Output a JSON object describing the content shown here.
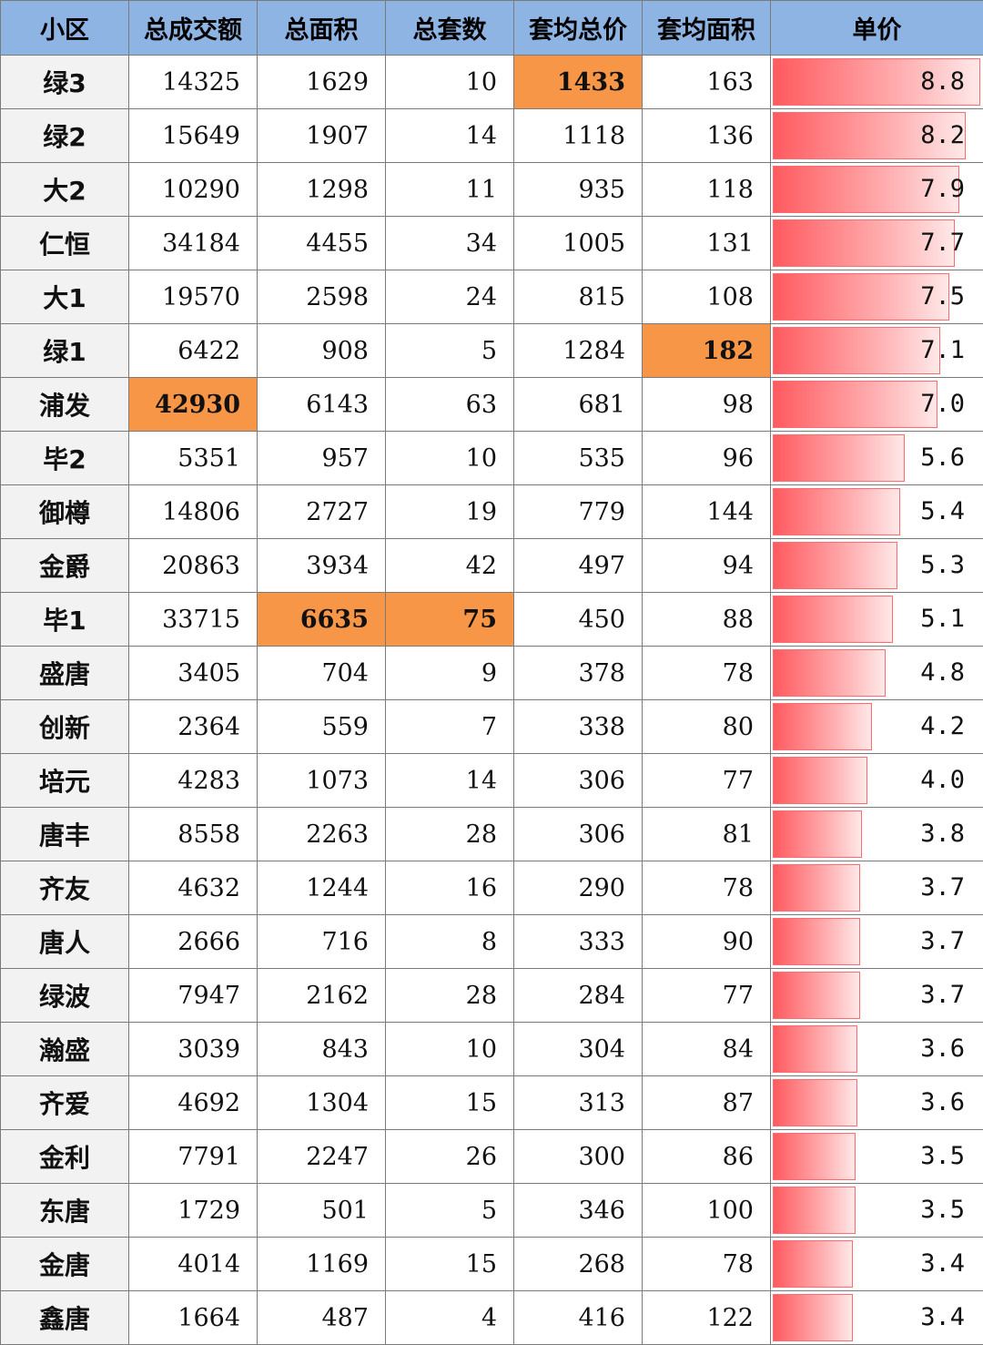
{
  "headers": [
    "小区",
    "总成交额",
    "总面积",
    "总套数",
    "套均总价",
    "套均面积",
    "单价"
  ],
  "highlight_color": "#f79646",
  "header_color": "#8eb4e3",
  "bar_color": "#ff5a5f",
  "unit_max": 8.8,
  "rows": [
    {
      "name": "绿3",
      "total": "14325",
      "area": "1629",
      "count": "10",
      "avg_price": "1433",
      "avg_area": "163",
      "unit": "8.8",
      "hl": [
        "avg_price"
      ]
    },
    {
      "name": "绿2",
      "total": "15649",
      "area": "1907",
      "count": "14",
      "avg_price": "1118",
      "avg_area": "136",
      "unit": "8.2",
      "hl": []
    },
    {
      "name": "大2",
      "total": "10290",
      "area": "1298",
      "count": "11",
      "avg_price": "935",
      "avg_area": "118",
      "unit": "7.9",
      "hl": []
    },
    {
      "name": "仁恒",
      "total": "34184",
      "area": "4455",
      "count": "34",
      "avg_price": "1005",
      "avg_area": "131",
      "unit": "7.7",
      "hl": []
    },
    {
      "name": "大1",
      "total": "19570",
      "area": "2598",
      "count": "24",
      "avg_price": "815",
      "avg_area": "108",
      "unit": "7.5",
      "hl": []
    },
    {
      "name": "绿1",
      "total": "6422",
      "area": "908",
      "count": "5",
      "avg_price": "1284",
      "avg_area": "182",
      "unit": "7.1",
      "hl": [
        "avg_area"
      ]
    },
    {
      "name": "浦发",
      "total": "42930",
      "area": "6143",
      "count": "63",
      "avg_price": "681",
      "avg_area": "98",
      "unit": "7.0",
      "hl": [
        "total"
      ]
    },
    {
      "name": "毕2",
      "total": "5351",
      "area": "957",
      "count": "10",
      "avg_price": "535",
      "avg_area": "96",
      "unit": "5.6",
      "hl": []
    },
    {
      "name": "御樽",
      "total": "14806",
      "area": "2727",
      "count": "19",
      "avg_price": "779",
      "avg_area": "144",
      "unit": "5.4",
      "hl": []
    },
    {
      "name": "金爵",
      "total": "20863",
      "area": "3934",
      "count": "42",
      "avg_price": "497",
      "avg_area": "94",
      "unit": "5.3",
      "hl": []
    },
    {
      "name": "毕1",
      "total": "33715",
      "area": "6635",
      "count": "75",
      "avg_price": "450",
      "avg_area": "88",
      "unit": "5.1",
      "hl": [
        "area",
        "count"
      ]
    },
    {
      "name": "盛唐",
      "total": "3405",
      "area": "704",
      "count": "9",
      "avg_price": "378",
      "avg_area": "78",
      "unit": "4.8",
      "hl": []
    },
    {
      "name": "创新",
      "total": "2364",
      "area": "559",
      "count": "7",
      "avg_price": "338",
      "avg_area": "80",
      "unit": "4.2",
      "hl": []
    },
    {
      "name": "培元",
      "total": "4283",
      "area": "1073",
      "count": "14",
      "avg_price": "306",
      "avg_area": "77",
      "unit": "4.0",
      "hl": []
    },
    {
      "name": "唐丰",
      "total": "8558",
      "area": "2263",
      "count": "28",
      "avg_price": "306",
      "avg_area": "81",
      "unit": "3.8",
      "hl": []
    },
    {
      "name": "齐友",
      "total": "4632",
      "area": "1244",
      "count": "16",
      "avg_price": "290",
      "avg_area": "78",
      "unit": "3.7",
      "hl": []
    },
    {
      "name": "唐人",
      "total": "2666",
      "area": "716",
      "count": "8",
      "avg_price": "333",
      "avg_area": "90",
      "unit": "3.7",
      "hl": []
    },
    {
      "name": "绿波",
      "total": "7947",
      "area": "2162",
      "count": "28",
      "avg_price": "284",
      "avg_area": "77",
      "unit": "3.7",
      "hl": []
    },
    {
      "name": "瀚盛",
      "total": "3039",
      "area": "843",
      "count": "10",
      "avg_price": "304",
      "avg_area": "84",
      "unit": "3.6",
      "hl": []
    },
    {
      "name": "齐爱",
      "total": "4692",
      "area": "1304",
      "count": "15",
      "avg_price": "313",
      "avg_area": "87",
      "unit": "3.6",
      "hl": []
    },
    {
      "name": "金利",
      "total": "7791",
      "area": "2247",
      "count": "26",
      "avg_price": "300",
      "avg_area": "86",
      "unit": "3.5",
      "hl": []
    },
    {
      "name": "东唐",
      "total": "1729",
      "area": "501",
      "count": "5",
      "avg_price": "346",
      "avg_area": "100",
      "unit": "3.5",
      "hl": []
    },
    {
      "name": "金唐",
      "total": "4014",
      "area": "1169",
      "count": "15",
      "avg_price": "268",
      "avg_area": "78",
      "unit": "3.4",
      "hl": []
    },
    {
      "name": "鑫唐",
      "total": "1664",
      "area": "487",
      "count": "4",
      "avg_price": "416",
      "avg_area": "122",
      "unit": "3.4",
      "hl": []
    }
  ]
}
